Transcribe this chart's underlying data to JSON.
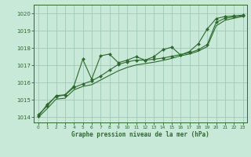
{
  "title": "Graphe pression niveau de la mer (hPa)",
  "background_color": "#c8e8d8",
  "grid_color": "#a0c8b8",
  "line_color": "#2d6a2d",
  "xlim": [
    -0.5,
    23.5
  ],
  "ylim": [
    1013.7,
    1020.5
  ],
  "yticks": [
    1014,
    1015,
    1016,
    1017,
    1018,
    1019,
    1020
  ],
  "xticks": [
    0,
    1,
    2,
    3,
    4,
    5,
    6,
    7,
    8,
    9,
    10,
    11,
    12,
    13,
    14,
    15,
    16,
    17,
    18,
    19,
    20,
    21,
    22,
    23
  ],
  "x": [
    0,
    1,
    2,
    3,
    4,
    5,
    6,
    7,
    8,
    9,
    10,
    11,
    12,
    13,
    14,
    15,
    16,
    17,
    18,
    19,
    20,
    21,
    22,
    23
  ],
  "s1": [
    1014.15,
    1014.65,
    1015.25,
    1015.3,
    1015.8,
    1017.35,
    1016.2,
    1017.55,
    1017.65,
    1017.15,
    1017.3,
    1017.5,
    1017.3,
    1017.5,
    1017.9,
    1018.05,
    1017.6,
    1017.8,
    1018.25,
    1019.1,
    1019.7,
    1019.82,
    1019.85,
    1019.9
  ],
  "s2": [
    1014.05,
    1014.75,
    1015.2,
    1015.28,
    1015.72,
    1015.92,
    1016.1,
    1016.38,
    1016.72,
    1017.05,
    1017.2,
    1017.3,
    1017.3,
    1017.35,
    1017.42,
    1017.52,
    1017.62,
    1017.72,
    1017.9,
    1018.2,
    1019.48,
    1019.72,
    1019.8,
    1019.87
  ],
  "s3": [
    1014.0,
    1014.5,
    1015.05,
    1015.1,
    1015.58,
    1015.78,
    1015.88,
    1016.15,
    1016.42,
    1016.68,
    1016.88,
    1017.02,
    1017.1,
    1017.18,
    1017.28,
    1017.4,
    1017.55,
    1017.65,
    1017.82,
    1018.08,
    1019.28,
    1019.6,
    1019.72,
    1019.82
  ]
}
